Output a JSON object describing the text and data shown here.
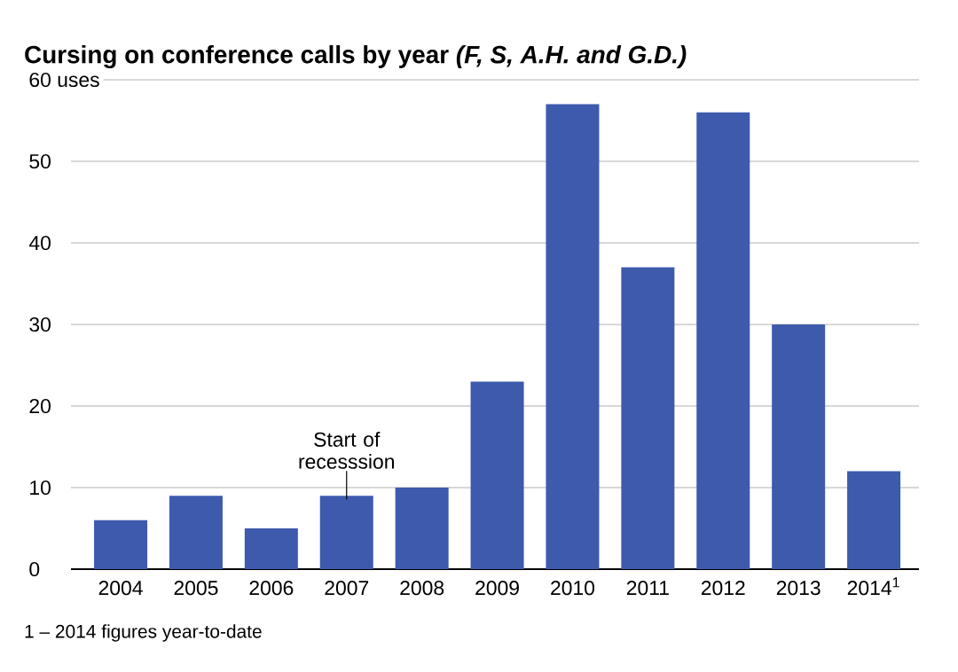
{
  "chart_data": {
    "type": "bar",
    "title": "Cursing on conference calls by year *(F, S, A.H. and G.D.)*",
    "categories": [
      "2004",
      "2005",
      "2006",
      "2007",
      "2008",
      "2009",
      "2010",
      "2011",
      "2012",
      "2013",
      "2014$^{1}$"
    ],
    "values": [
      6,
      9,
      5,
      9,
      10,
      23,
      57,
      37,
      56,
      30,
      12
    ],
    "color": "#3d5aad",
    "ylim": [
      0,
      60
    ],
    "yticks": [
      0,
      10,
      20,
      30,
      40,
      50,
      {
        "value": 60,
        "label": "60 uses"
      }
    ],
    "grid": "y",
    "annotations": [
      {
        "text": "Start of recesssion",
        "x": "2007",
        "y": 9
      },
      "1 – 2014 figures year-to-date"
    ]
  }
}
